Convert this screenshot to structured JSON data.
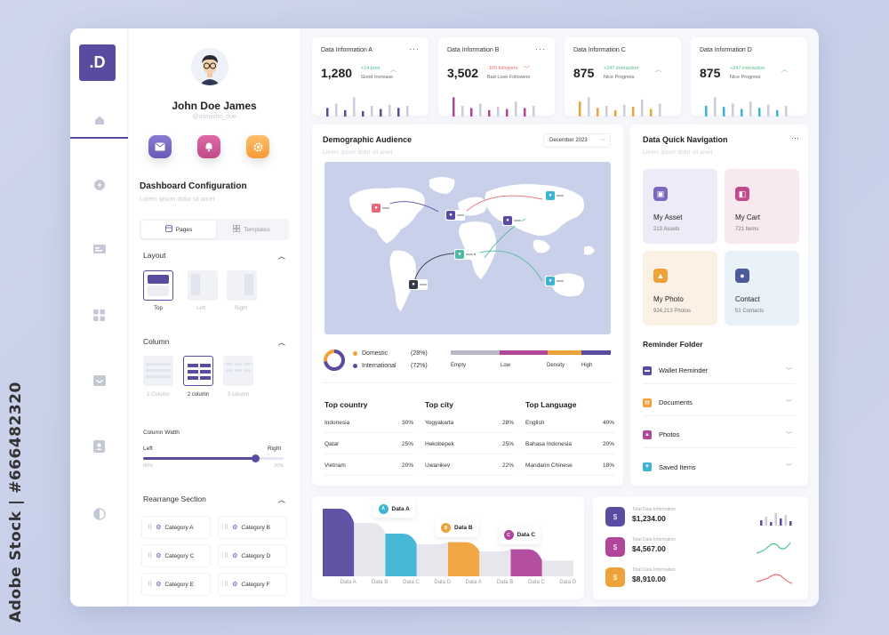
{
  "watermark": "Adobe Stock | #666482320",
  "logo": ".D",
  "rail": {
    "icons": [
      "home-icon",
      "bolt-icon",
      "card-icon",
      "grid-icon",
      "inbox-icon",
      "contacts-icon",
      "theme-icon"
    ],
    "active": "home-icon"
  },
  "profile": {
    "name": "John Doe James",
    "username": "@userjohn_doe",
    "quick_actions": [
      "mail-icon",
      "notification-icon",
      "settings-icon"
    ]
  },
  "config": {
    "title": "Dashboard Configuration",
    "subtitle": "Lorem ipsum dolor sit amet",
    "tabs": [
      {
        "label": "Pages",
        "active": true
      },
      {
        "label": "Templates",
        "active": false
      }
    ],
    "layout": {
      "title": "Layout",
      "options": [
        "Top",
        "Left",
        "Right"
      ],
      "selected": "Top"
    },
    "column": {
      "title": "Column",
      "options": [
        "1 Column",
        "2 column",
        "3 column"
      ],
      "selected": "2 column"
    },
    "column_width": {
      "title": "Column Width",
      "left_label": "Left",
      "right_label": "Right",
      "left_value": "80%",
      "right_value": "20%",
      "position": 0.8
    },
    "rearrange": {
      "title": "Rearrange Section",
      "categories": [
        "Category A",
        "Category B",
        "Category C",
        "Category D",
        "Category E",
        "Category F"
      ]
    }
  },
  "kpis": [
    {
      "title": "Data Information A",
      "value": "1,280",
      "change": "+14 post",
      "note": "Good Increase",
      "trend": "up",
      "color": "#5a4aa0",
      "bars": [
        0.4,
        0.6,
        0.3,
        0.9,
        0.25,
        0.5,
        0.35,
        0.55,
        0.4,
        0.5
      ]
    },
    {
      "title": "Data Information B",
      "value": "3,502",
      "change": "-165 followers",
      "note": "Bad Lose Followers",
      "trend": "down",
      "color": "#b0459a",
      "bars": [
        0.9,
        0.5,
        0.4,
        0.6,
        0.3,
        0.45,
        0.35,
        0.7,
        0.4,
        0.5
      ]
    },
    {
      "title": "Data Information C",
      "value": "875",
      "change": "+247 interaction",
      "note": "Nice Progress",
      "trend": "up",
      "color": "#f0a23a",
      "bars": [
        0.7,
        0.9,
        0.4,
        0.5,
        0.3,
        0.55,
        0.45,
        0.8,
        0.35,
        0.6
      ]
    },
    {
      "title": "Data Information D",
      "value": "875",
      "change": "+247 interaction",
      "note": "Nice Progress",
      "trend": "up",
      "color": "#3db4d4",
      "bars": [
        0.5,
        0.9,
        0.45,
        0.6,
        0.35,
        0.7,
        0.4,
        0.55,
        0.3,
        0.5
      ]
    }
  ],
  "demographic": {
    "title": "Demographic Audience",
    "subtitle": "Lorem ipsum dolor sit amet",
    "date": "December 2023",
    "legend": [
      {
        "label": "Domestic",
        "percent": "(28%)",
        "color": "#f0a23a"
      },
      {
        "label": "International",
        "percent": "(72%)",
        "color": "#5a4aa0"
      }
    ],
    "donut_fraction": 0.72,
    "density": {
      "labels": [
        "Empty",
        "Low",
        "Density",
        "High"
      ],
      "colors": [
        "#b8b8c4",
        "#b0459a",
        "#f0a23a",
        "#5a4aa0"
      ]
    },
    "pins": [
      {
        "color": "#e86a7a"
      },
      {
        "color": "#5a4aa0"
      },
      {
        "color": "#5a4aa0"
      },
      {
        "color": "#3db4d4"
      },
      {
        "color": "#5a4aa0"
      },
      {
        "color": "#4fb8a8"
      },
      {
        "color": "#333a48"
      },
      {
        "color": "#3db4d4"
      }
    ],
    "tables": [
      {
        "title": "Top country",
        "rows": [
          [
            "Indonesia",
            "30%"
          ],
          [
            "Qatar",
            "25%"
          ],
          [
            "Vietnam",
            "20%"
          ]
        ]
      },
      {
        "title": "Top city",
        "rows": [
          [
            "Yogyakarta",
            "28%"
          ],
          [
            "Hekobepek",
            "25%"
          ],
          [
            "Uwanikev",
            "22%"
          ]
        ]
      },
      {
        "title": "Top Language",
        "rows": [
          [
            "English",
            "40%"
          ],
          [
            "Bahasa Indonesia",
            "20%"
          ],
          [
            "Mandarin Chinese",
            "18%"
          ]
        ]
      }
    ]
  },
  "quick_nav": {
    "title": "Data Quick Navigation",
    "subtitle": "Lorem ipsum dolor sit amet",
    "tiles": [
      {
        "label": "My Asset",
        "sub": "213 Assets",
        "bg": "#ecebf7",
        "icon_color": "#7a68c0"
      },
      {
        "label": "My Cart",
        "sub": "721 Items",
        "bg": "#f8e8ef",
        "icon_color": "#c04a8a"
      },
      {
        "label": "My Photo",
        "sub": "924,213 Photos",
        "bg": "#fbf1e4",
        "icon_color": "#f0a23a"
      },
      {
        "label": "Contact",
        "sub": "51 Contacts",
        "bg": "#e9f2f8",
        "icon_color": "#4a5a9a"
      }
    ]
  },
  "reminder": {
    "title": "Reminder Folder",
    "items": [
      {
        "label": "Wallet Reminder",
        "color": "#5a4aa0"
      },
      {
        "label": "Documents",
        "color": "#f0a23a"
      },
      {
        "label": "Photos",
        "color": "#b0459a"
      },
      {
        "label": "Saved Items",
        "color": "#3db4d4"
      }
    ]
  },
  "chart_data": {
    "type": "area",
    "categories": [
      "Data A",
      "Data B",
      "Data C",
      "Data D",
      "Data A",
      "Data B",
      "Data C",
      "Data D"
    ],
    "values": [
      0.95,
      0.75,
      0.6,
      0.45,
      0.48,
      0.35,
      0.38,
      0.22
    ],
    "colors": [
      "#5a4aa0",
      "#e6e6ec",
      "#3db4d4",
      "#e6e6ec",
      "#f0a23a",
      "#e6e6ec",
      "#b0459a",
      "#e6e6ec"
    ],
    "callouts": [
      {
        "label": "Data A",
        "mark": "A",
        "color": "#3db4d4"
      },
      {
        "label": "Data B",
        "mark": "B",
        "color": "#f0a23a"
      },
      {
        "label": "Data C",
        "mark": "C",
        "color": "#b0459a"
      }
    ],
    "ylim": [
      0,
      1
    ]
  },
  "totals": [
    {
      "label": "Total Data Information",
      "value": "$1,234.00",
      "color": "#5a4aa0",
      "spark_color": "#5a4aa0"
    },
    {
      "label": "Total Data Information",
      "value": "$4,567.00",
      "color": "#b0459a",
      "spark_color": "#4fc08a"
    },
    {
      "label": "Total Data Information",
      "value": "$8,910.00",
      "color": "#f0a23a",
      "spark_color": "#e86a6a"
    }
  ]
}
